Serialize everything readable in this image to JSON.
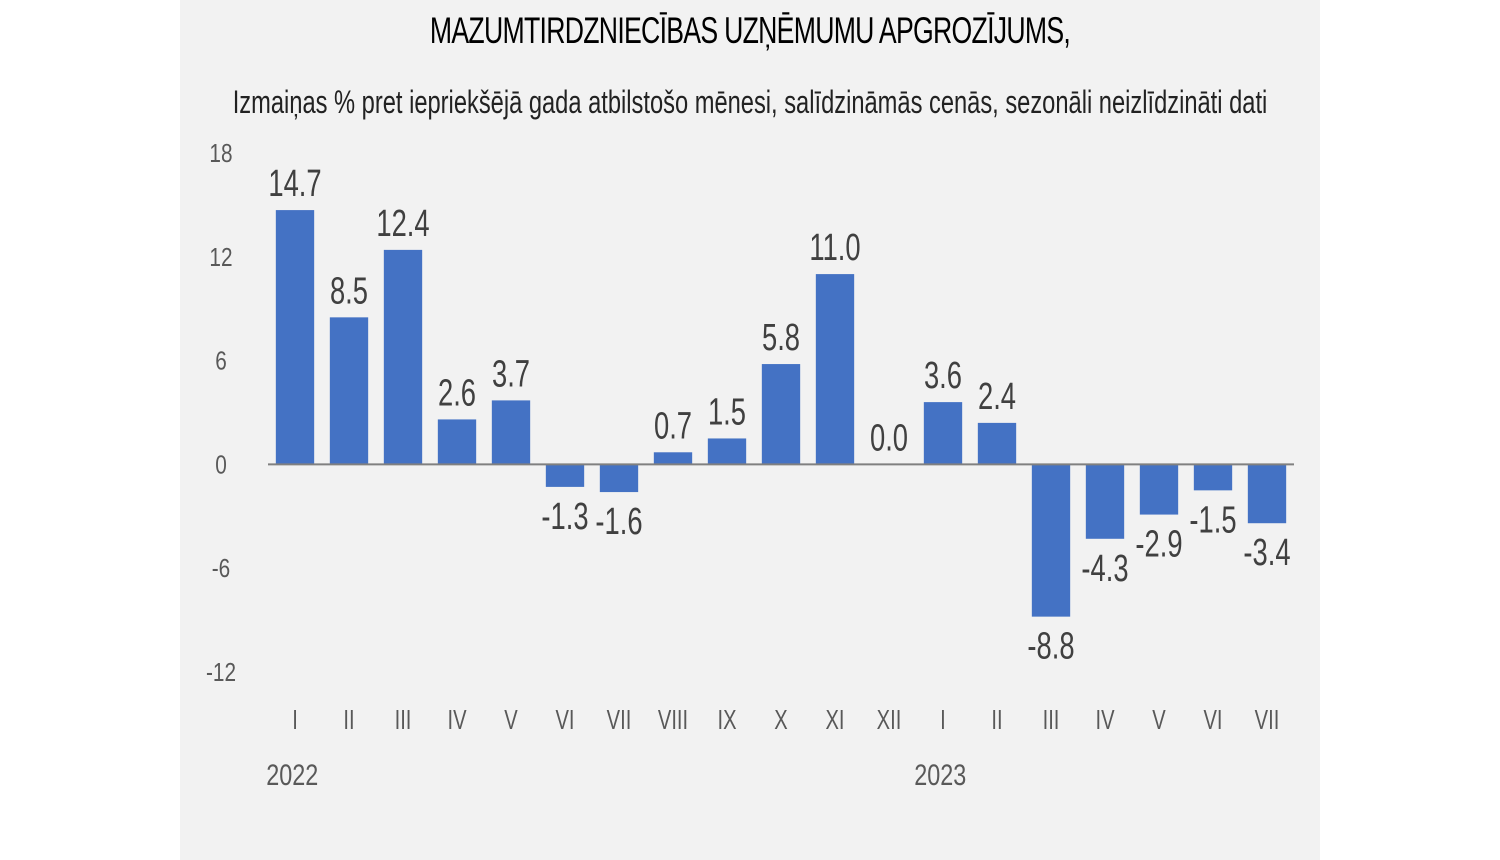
{
  "chart_data": {
    "type": "bar",
    "title": "MAZUMTIRDZNIECĪBAS UZŅĒMUMU APGROZĪJUMS,",
    "subtitle": "Izmaiņas % pret iepriekšējā gada atbilstošo mēnesi, salīdzināmās cenās, sezonāli neizlīdzināti dati",
    "categories": [
      "I",
      "II",
      "III",
      "IV",
      "V",
      "VI",
      "VII",
      "VIII",
      "IX",
      "X",
      "XI",
      "XII",
      "I",
      "II",
      "III",
      "IV",
      "V",
      "VI",
      "VII"
    ],
    "values": [
      14.7,
      8.5,
      12.4,
      2.6,
      3.7,
      -1.3,
      -1.6,
      0.7,
      1.5,
      5.8,
      11.0,
      0.0,
      3.6,
      2.4,
      -8.8,
      -4.3,
      -2.9,
      -1.5,
      -3.4
    ],
    "data_labels": [
      "14.7",
      "8.5",
      "12.4",
      "2.6",
      "3.7",
      "-1.3",
      "-1.6",
      "0.7",
      "1.5",
      "5.8",
      "11.0",
      "0.0",
      "3.6",
      "2.4",
      "-8.8",
      "-4.3",
      "-2.9",
      "-1.5",
      "-3.4"
    ],
    "year_groups": [
      {
        "label": "2022",
        "start_index": 0
      },
      {
        "label": "2023",
        "start_index": 12
      }
    ],
    "y_ticks": [
      18,
      12,
      6,
      0,
      -6,
      -12
    ],
    "y_tick_labels": [
      "18",
      "12",
      "6",
      "0",
      "-6",
      "-12"
    ],
    "ylim": [
      -12,
      18
    ],
    "bar_color": "#4472c4",
    "axis_color": "#808080",
    "grid": false,
    "legend": "none"
  }
}
